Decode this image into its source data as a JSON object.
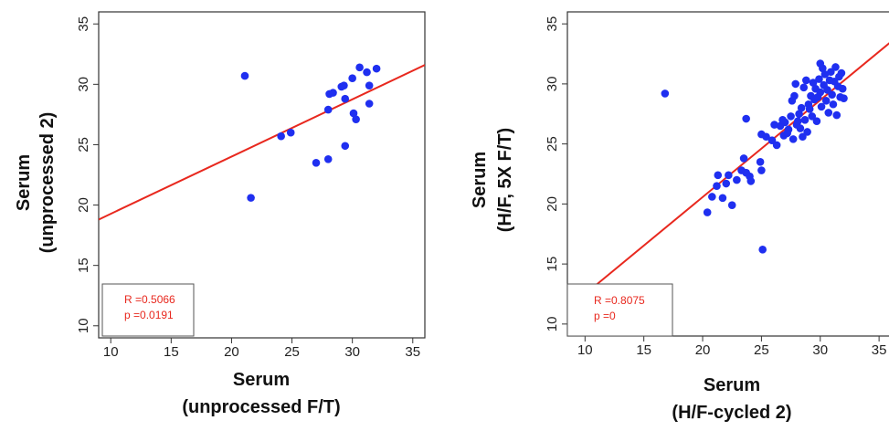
{
  "colors": {
    "points": "#1f2ff0",
    "fit_line": "#e8281e",
    "frame": "#333333",
    "stats_text": "#e8281e"
  },
  "chart_data": [
    {
      "type": "scatter",
      "xlabel": [
        "Serum",
        "(unprocessed F/T)"
      ],
      "ylabel": [
        "Serum",
        "(unprocessed 2)"
      ],
      "xlim": [
        9,
        36
      ],
      "ylim": [
        9,
        36
      ],
      "xticks": [
        10,
        15,
        20,
        25,
        30,
        35
      ],
      "yticks": [
        10,
        15,
        20,
        25,
        30,
        35
      ],
      "grid": false,
      "points": [
        [
          21.1,
          30.7
        ],
        [
          21.6,
          20.6
        ],
        [
          24.1,
          25.7
        ],
        [
          24.9,
          26.0
        ],
        [
          27.0,
          23.5
        ],
        [
          28.0,
          23.8
        ],
        [
          28.0,
          27.9
        ],
        [
          28.1,
          29.2
        ],
        [
          28.4,
          29.3
        ],
        [
          29.1,
          29.8
        ],
        [
          29.3,
          29.9
        ],
        [
          29.4,
          28.8
        ],
        [
          29.4,
          24.9
        ],
        [
          30.0,
          30.5
        ],
        [
          30.1,
          27.6
        ],
        [
          30.3,
          27.1
        ],
        [
          30.6,
          31.4
        ],
        [
          31.2,
          31.0
        ],
        [
          31.4,
          29.9
        ],
        [
          31.4,
          28.4
        ],
        [
          32.0,
          31.3
        ]
      ],
      "fit_line": {
        "x": [
          9,
          36
        ],
        "y": [
          18.8,
          31.6
        ]
      },
      "stats": {
        "r": "R =0.5066",
        "p": "p =0.0191"
      }
    },
    {
      "type": "scatter",
      "xlabel": [
        "Serum",
        "(H/F-cycled 2)"
      ],
      "ylabel": [
        "Serum",
        "(H/F, 5X F/T)"
      ],
      "xlim": [
        8.5,
        36
      ],
      "ylim": [
        9,
        36
      ],
      "xticks": [
        10,
        15,
        20,
        25,
        30,
        35
      ],
      "yticks": [
        10,
        15,
        20,
        25,
        30,
        35
      ],
      "grid": false,
      "points": [
        [
          16.8,
          29.2
        ],
        [
          20.4,
          19.3
        ],
        [
          20.8,
          20.6
        ],
        [
          21.2,
          21.5
        ],
        [
          21.3,
          22.4
        ],
        [
          21.7,
          20.5
        ],
        [
          22.0,
          21.7
        ],
        [
          22.2,
          22.4
        ],
        [
          22.5,
          19.9
        ],
        [
          22.9,
          22.0
        ],
        [
          23.3,
          22.8
        ],
        [
          23.5,
          23.8
        ],
        [
          23.7,
          22.6
        ],
        [
          23.7,
          27.1
        ],
        [
          24.0,
          22.3
        ],
        [
          24.1,
          21.9
        ],
        [
          24.9,
          23.5
        ],
        [
          25.0,
          25.8
        ],
        [
          25.0,
          22.8
        ],
        [
          25.1,
          16.2
        ],
        [
          25.4,
          25.6
        ],
        [
          25.9,
          25.3
        ],
        [
          26.3,
          24.9
        ],
        [
          26.6,
          26.5
        ],
        [
          26.9,
          25.7
        ],
        [
          27.0,
          26.8
        ],
        [
          27.3,
          26.2
        ],
        [
          27.5,
          27.3
        ],
        [
          27.6,
          28.6
        ],
        [
          27.7,
          25.4
        ],
        [
          27.8,
          29.0
        ],
        [
          27.9,
          30.0
        ],
        [
          28.0,
          26.6
        ],
        [
          28.2,
          27.5
        ],
        [
          28.3,
          26.3
        ],
        [
          28.4,
          28.0
        ],
        [
          28.5,
          25.6
        ],
        [
          28.6,
          29.7
        ],
        [
          28.7,
          27.0
        ],
        [
          28.8,
          30.3
        ],
        [
          28.9,
          26.0
        ],
        [
          29.0,
          28.3
        ],
        [
          29.1,
          27.9
        ],
        [
          29.2,
          29.0
        ],
        [
          29.3,
          27.3
        ],
        [
          29.4,
          30.1
        ],
        [
          29.5,
          28.7
        ],
        [
          29.6,
          29.6
        ],
        [
          29.7,
          26.9
        ],
        [
          29.8,
          28.9
        ],
        [
          29.9,
          30.4
        ],
        [
          30.0,
          31.7
        ],
        [
          30.0,
          29.3
        ],
        [
          30.1,
          28.1
        ],
        [
          30.2,
          31.3
        ],
        [
          30.3,
          29.9
        ],
        [
          30.4,
          30.8
        ],
        [
          30.5,
          28.6
        ],
        [
          30.6,
          29.5
        ],
        [
          30.7,
          27.6
        ],
        [
          30.8,
          30.3
        ],
        [
          30.9,
          31.0
        ],
        [
          31.0,
          29.1
        ],
        [
          31.1,
          28.3
        ],
        [
          31.2,
          30.2
        ],
        [
          31.3,
          31.4
        ],
        [
          31.4,
          27.4
        ],
        [
          31.5,
          29.8
        ],
        [
          31.6,
          30.6
        ],
        [
          31.7,
          28.9
        ],
        [
          31.8,
          30.9
        ],
        [
          31.9,
          29.6
        ],
        [
          32.0,
          28.8
        ],
        [
          26.1,
          26.6
        ],
        [
          27.2,
          25.9
        ],
        [
          28.1,
          26.9
        ],
        [
          26.8,
          27.0
        ]
      ],
      "fit_line": {
        "x": [
          10.5,
          36
        ],
        "y": [
          12.9,
          33.5
        ]
      },
      "stats": {
        "r": "R =0.8075",
        "p": "p =0"
      }
    }
  ]
}
